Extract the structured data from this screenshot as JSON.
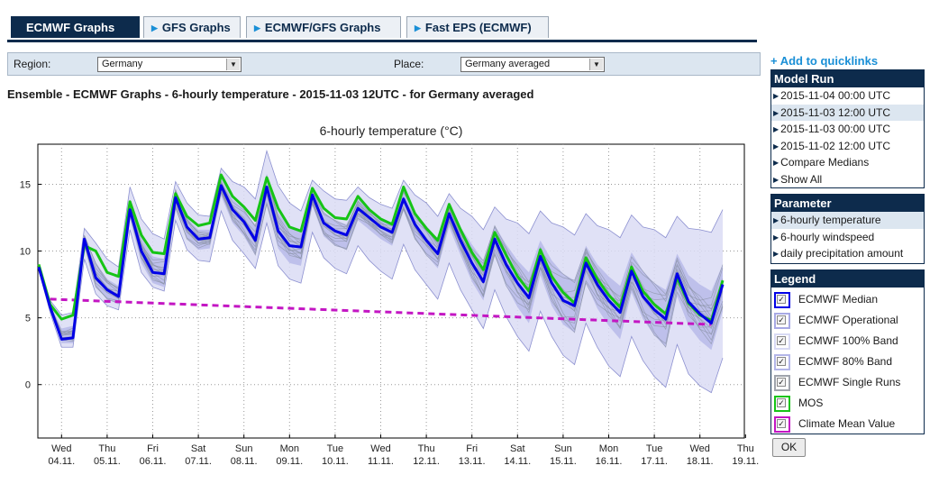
{
  "tabs": [
    {
      "label": "ECMWF Graphs",
      "active": true
    },
    {
      "label": "GFS Graphs",
      "active": false
    },
    {
      "label": "ECMWF/GFS Graphs",
      "active": false
    },
    {
      "label": "Fast EPS (ECMWF)",
      "active": false
    }
  ],
  "filter": {
    "region_label": "Region:",
    "region_value": "Germany",
    "place_label": "Place:",
    "place_value": "Germany averaged"
  },
  "heading": "Ensemble - ECMWF Graphs - 6-hourly temperature - 2015-11-03 12UTC - for Germany averaged",
  "sidebar": {
    "quicklinks": "+ Add to quicklinks",
    "model_run": {
      "title": "Model Run",
      "items": [
        "2015-11-04 00:00 UTC",
        "2015-11-03 12:00 UTC",
        "2015-11-03 00:00 UTC",
        "2015-11-02 12:00 UTC",
        "Compare Medians",
        "Show All"
      ],
      "selected": 1
    },
    "parameter": {
      "title": "Parameter",
      "items": [
        "6-hourly temperature",
        "6-hourly windspeed",
        "daily precipitation amount"
      ],
      "selected": 0
    },
    "legend": {
      "title": "Legend",
      "items": [
        {
          "label": "ECMWF Median",
          "color": "#0000e6",
          "fill": "#ffffff"
        },
        {
          "label": "ECMWF Operational",
          "color": "#a7a9e4",
          "fill": "#ffffff"
        },
        {
          "label": "ECMWF 100% Band",
          "color": "#d8daf4",
          "fill": "#ffffff"
        },
        {
          "label": "ECMWF 80% Band",
          "color": "#b3b6e8",
          "fill": "#ffffff"
        },
        {
          "label": "ECMWF Single Runs",
          "color": "#a0a4ac",
          "fill": "#ffffff"
        },
        {
          "label": "MOS",
          "color": "#16c416",
          "fill": "#ffffff"
        },
        {
          "label": "Climate Mean Value",
          "color": "#c316c3",
          "fill": "#ffffff"
        }
      ],
      "checkmark": "✓"
    },
    "ok_label": "OK"
  },
  "chart_data": {
    "type": "line",
    "title": "6-hourly temperature (°C)",
    "x_step_hours": 6,
    "ylim": [
      -4,
      18
    ],
    "yticks": [
      0,
      5,
      10,
      15
    ],
    "grid": true,
    "days": [
      {
        "weekday": "Wed",
        "date": "04.11."
      },
      {
        "weekday": "Thu",
        "date": "05.11."
      },
      {
        "weekday": "Fri",
        "date": "06.11."
      },
      {
        "weekday": "Sat",
        "date": "07.11."
      },
      {
        "weekday": "Sun",
        "date": "08.11."
      },
      {
        "weekday": "Mon",
        "date": "09.11."
      },
      {
        "weekday": "Tue",
        "date": "10.11."
      },
      {
        "weekday": "Wed",
        "date": "11.11."
      },
      {
        "weekday": "Thu",
        "date": "12.11."
      },
      {
        "weekday": "Fri",
        "date": "13.11."
      },
      {
        "weekday": "Sat",
        "date": "14.11."
      },
      {
        "weekday": "Sun",
        "date": "15.11."
      },
      {
        "weekday": "Mon",
        "date": "16.11."
      },
      {
        "weekday": "Tue",
        "date": "17.11."
      },
      {
        "weekday": "Wed",
        "date": "18.11."
      },
      {
        "weekday": "Thu",
        "date": "19.11."
      }
    ],
    "series": [
      {
        "name": "ECMWF Median",
        "color": "#0000e6",
        "values": [
          8.8,
          5.8,
          3.4,
          3.5,
          10.9,
          8.0,
          7.1,
          6.6,
          13.1,
          10.0,
          8.4,
          8.3,
          14.0,
          11.8,
          10.9,
          11.0,
          14.9,
          13.1,
          12.2,
          10.8,
          14.8,
          11.5,
          10.4,
          10.3,
          14.2,
          12.1,
          11.5,
          11.2,
          13.2,
          12.5,
          11.8,
          11.4,
          13.9,
          12.0,
          10.8,
          9.8,
          12.8,
          10.8,
          9.1,
          7.7,
          10.9,
          9.0,
          7.6,
          6.5,
          9.6,
          7.6,
          6.3,
          5.9,
          9.1,
          7.5,
          6.3,
          5.4,
          8.5,
          6.6,
          5.6,
          4.9,
          8.3,
          6.2,
          5.3,
          4.6,
          7.5
        ]
      },
      {
        "name": "MOS",
        "color": "#16c416",
        "values": [
          9.0,
          6.0,
          4.9,
          5.2,
          10.4,
          10.0,
          8.4,
          8.1,
          13.7,
          11.2,
          9.9,
          9.8,
          14.3,
          12.6,
          11.9,
          12.1,
          15.7,
          14.1,
          13.3,
          12.3,
          15.5,
          13.2,
          11.8,
          11.5,
          14.7,
          13.2,
          12.5,
          12.4,
          14.1,
          13.1,
          12.4,
          12.0,
          14.8,
          12.8,
          11.7,
          10.8,
          13.5,
          11.6,
          9.9,
          8.6,
          11.4,
          9.7,
          8.1,
          7.0,
          10.1,
          8.1,
          6.9,
          6.1,
          9.5,
          7.9,
          6.7,
          5.8,
          8.8,
          7.0,
          6.0,
          5.3,
          8.0,
          6.1,
          5.2,
          4.8,
          7.8
        ]
      },
      {
        "name": "Climate Mean Value",
        "color": "#c316c3",
        "dashed": true,
        "x": [
          1.0,
          59.0
        ],
        "values": [
          6.4,
          4.5
        ]
      },
      {
        "name": "ECMWF 100% Band",
        "color": "#dadcf5",
        "upper": [
          8.9,
          6.3,
          5.2,
          5.4,
          11.7,
          10.6,
          9.4,
          8.8,
          14.8,
          12.4,
          11.3,
          10.9,
          15.2,
          13.6,
          12.7,
          12.6,
          16.2,
          15.2,
          14.8,
          13.9,
          17.5,
          14.9,
          13.6,
          13.0,
          15.3,
          14.5,
          13.9,
          13.8,
          14.8,
          14.0,
          13.5,
          13.2,
          15.3,
          14.2,
          13.6,
          12.6,
          14.3,
          13.2,
          12.6,
          11.6,
          13.3,
          12.4,
          12.1,
          11.3,
          13.0,
          12.1,
          11.8,
          11.2,
          12.8,
          11.9,
          11.6,
          11.0,
          12.7,
          11.8,
          11.6,
          11.0,
          12.6,
          11.7,
          11.6,
          11.4,
          13.1
        ],
        "lower": [
          8.6,
          5.4,
          2.8,
          2.8,
          9.4,
          6.8,
          5.9,
          5.6,
          11.6,
          8.4,
          7.3,
          7.0,
          12.3,
          10.1,
          9.3,
          9.2,
          13.0,
          10.8,
          9.8,
          8.7,
          12.1,
          8.9,
          7.9,
          7.6,
          11.4,
          9.5,
          8.7,
          8.3,
          10.4,
          9.3,
          8.5,
          7.9,
          10.5,
          8.6,
          7.5,
          6.4,
          9.1,
          7.1,
          5.6,
          4.2,
          7.1,
          5.1,
          3.6,
          2.5,
          5.5,
          3.6,
          2.2,
          1.5,
          4.6,
          2.8,
          1.4,
          0.6,
          3.6,
          1.8,
          0.6,
          -0.2,
          3.0,
          0.8,
          -0.1,
          -0.6,
          2.0
        ]
      },
      {
        "name": "ECMWF 80% Band",
        "color": "#b7bae9",
        "upper": [
          8.8,
          6.0,
          4.2,
          4.4,
          11.2,
          9.1,
          7.9,
          7.4,
          13.8,
          11.0,
          9.6,
          9.4,
          14.6,
          12.5,
          11.6,
          11.6,
          15.5,
          13.9,
          13.1,
          11.9,
          15.8,
          12.9,
          11.8,
          11.4,
          14.6,
          12.9,
          12.3,
          12.0,
          13.9,
          13.2,
          12.5,
          12.1,
          14.5,
          12.9,
          11.9,
          10.9,
          13.6,
          11.8,
          10.5,
          9.3,
          11.9,
          10.5,
          9.3,
          8.4,
          10.8,
          9.3,
          8.3,
          7.8,
          10.4,
          9.0,
          8.1,
          7.4,
          9.9,
          8.5,
          7.6,
          7.1,
          9.8,
          8.2,
          7.5,
          7.0,
          9.0
        ],
        "lower": [
          8.7,
          5.6,
          3.1,
          3.1,
          10.4,
          7.3,
          6.4,
          6.0,
          12.4,
          9.1,
          7.6,
          7.3,
          13.2,
          10.9,
          10.1,
          10.2,
          14.1,
          12.1,
          11.1,
          9.7,
          13.5,
          10.2,
          9.1,
          8.9,
          13.4,
          11.1,
          10.4,
          10.1,
          12.3,
          11.6,
          10.9,
          10.4,
          13.0,
          10.9,
          9.7,
          8.7,
          11.8,
          9.7,
          7.7,
          6.3,
          9.7,
          7.4,
          5.8,
          4.6,
          8.2,
          5.9,
          4.5,
          3.9,
          7.6,
          5.7,
          4.4,
          3.4,
          6.9,
          4.9,
          3.7,
          2.8,
          6.6,
          4.4,
          3.3,
          2.6,
          5.5
        ]
      }
    ]
  }
}
